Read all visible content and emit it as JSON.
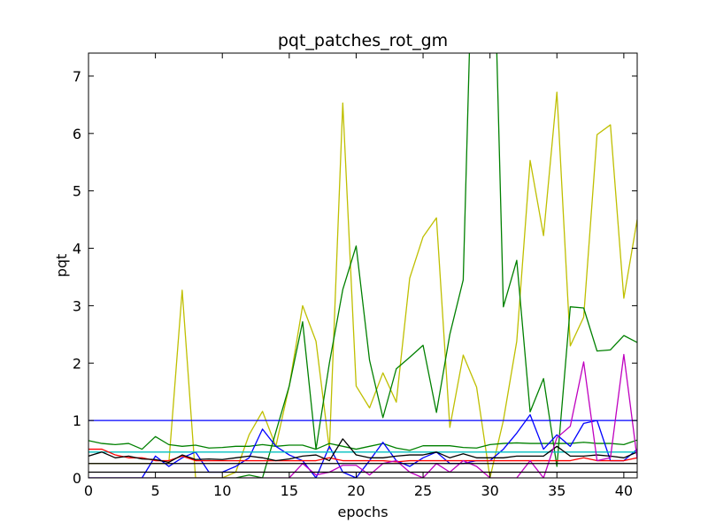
{
  "chart_data": {
    "type": "line",
    "title": "pqt_patches_rot_gm",
    "xlabel": "epochs",
    "ylabel": "pqt",
    "xlim": [
      0,
      41
    ],
    "ylim": [
      0,
      7.4
    ],
    "xticks": [
      0,
      5,
      10,
      15,
      20,
      25,
      30,
      35,
      40
    ],
    "yticks": [
      0,
      1,
      2,
      3,
      4,
      5,
      6,
      7
    ],
    "grid": false,
    "legend": "none",
    "x": [
      0,
      1,
      2,
      3,
      4,
      5,
      6,
      7,
      8,
      9,
      10,
      11,
      12,
      13,
      14,
      15,
      16,
      17,
      18,
      19,
      20,
      21,
      22,
      23,
      24,
      25,
      26,
      27,
      28,
      29,
      30,
      31,
      32,
      33,
      34,
      35,
      36,
      37,
      38,
      39,
      40,
      41
    ],
    "series": [
      {
        "color": "#bfbf00",
        "values": [
          0.25,
          0.25,
          0.25,
          0.25,
          0.25,
          0.25,
          0.25,
          3.27,
          0.0,
          0.0,
          0.0,
          0.1,
          0.75,
          1.16,
          0.55,
          1.6,
          3.0,
          2.38,
          0.5,
          6.53,
          1.6,
          1.22,
          1.83,
          1.32,
          3.48,
          4.2,
          4.53,
          0.88,
          2.14,
          1.58,
          0.0,
          1.0,
          2.38,
          5.53,
          4.22,
          6.72,
          2.3,
          2.8,
          5.98,
          6.15,
          3.13,
          4.5
        ]
      },
      {
        "color": "#008000",
        "values": [
          0.0,
          0.0,
          0.0,
          0.0,
          0.0,
          0.0,
          0.0,
          0.0,
          0.0,
          0.0,
          0.0,
          0.0,
          0.05,
          0.0,
          0.8,
          1.6,
          2.72,
          0.5,
          2.0,
          3.28,
          4.04,
          2.05,
          1.05,
          1.9,
          2.1,
          2.31,
          1.14,
          2.5,
          3.45,
          12.0,
          12.0,
          2.98,
          3.79,
          1.15,
          1.73,
          0.2,
          2.98,
          2.96,
          2.21,
          2.23,
          2.48,
          2.36
        ]
      },
      {
        "color": "#008000",
        "values": [
          0.65,
          0.6,
          0.58,
          0.6,
          0.5,
          0.72,
          0.58,
          0.55,
          0.57,
          0.52,
          0.53,
          0.55,
          0.55,
          0.58,
          0.55,
          0.57,
          0.57,
          0.5,
          0.6,
          0.55,
          0.5,
          0.55,
          0.6,
          0.52,
          0.48,
          0.56,
          0.56,
          0.56,
          0.53,
          0.52,
          0.58,
          0.6,
          0.61,
          0.6,
          0.6,
          0.6,
          0.6,
          0.62,
          0.6,
          0.6,
          0.58,
          0.66
        ]
      },
      {
        "color": "#0000ff",
        "values": [
          1.0,
          1.0,
          1.0,
          1.0,
          1.0,
          1.0,
          1.0,
          1.0,
          1.0,
          1.0,
          1.0,
          1.0,
          1.0,
          1.0,
          1.0,
          1.0,
          1.0,
          1.0,
          1.0,
          1.0,
          1.0,
          1.0,
          1.0,
          1.0,
          1.0,
          1.0,
          1.0,
          1.0,
          1.0,
          1.0,
          1.0,
          1.0,
          1.0,
          1.0,
          1.0,
          1.0,
          1.0,
          1.0,
          1.0,
          1.0,
          1.0,
          1.0
        ]
      },
      {
        "color": "#0000ff",
        "values": [
          0.0,
          0.0,
          0.0,
          0.0,
          0.0,
          0.38,
          0.2,
          0.35,
          0.45,
          0.1,
          0.1,
          0.2,
          0.35,
          0.85,
          0.55,
          0.4,
          0.3,
          0.0,
          0.55,
          0.1,
          0.0,
          0.3,
          0.62,
          0.3,
          0.2,
          0.35,
          0.45,
          0.25,
          0.25,
          0.3,
          0.3,
          0.5,
          0.78,
          1.1,
          0.5,
          0.75,
          0.55,
          0.95,
          1.0,
          0.3,
          0.3,
          0.5
        ]
      },
      {
        "color": "#00bfbf",
        "values": [
          0.45,
          0.45,
          0.45,
          0.45,
          0.45,
          0.45,
          0.45,
          0.45,
          0.45,
          0.45,
          0.45,
          0.45,
          0.45,
          0.45,
          0.45,
          0.45,
          0.45,
          0.45,
          0.45,
          0.45,
          0.45,
          0.45,
          0.45,
          0.45,
          0.45,
          0.45,
          0.45,
          0.45,
          0.45,
          0.45,
          0.45,
          0.45,
          0.45,
          0.45,
          0.45,
          0.45,
          0.45,
          0.45,
          0.45,
          0.45,
          0.45,
          0.45
        ]
      },
      {
        "color": "#ff0000",
        "values": [
          0.5,
          0.5,
          0.4,
          0.35,
          0.35,
          0.3,
          0.3,
          0.38,
          0.3,
          0.3,
          0.3,
          0.3,
          0.3,
          0.3,
          0.3,
          0.3,
          0.3,
          0.3,
          0.35,
          0.3,
          0.3,
          0.3,
          0.3,
          0.28,
          0.3,
          0.3,
          0.3,
          0.3,
          0.3,
          0.3,
          0.3,
          0.3,
          0.3,
          0.3,
          0.3,
          0.3,
          0.3,
          0.35,
          0.3,
          0.3,
          0.3,
          0.35
        ]
      },
      {
        "color": "#000000",
        "values": [
          0.38,
          0.45,
          0.35,
          0.38,
          0.33,
          0.32,
          0.27,
          0.4,
          0.32,
          0.33,
          0.32,
          0.35,
          0.38,
          0.35,
          0.3,
          0.33,
          0.38,
          0.4,
          0.3,
          0.68,
          0.4,
          0.35,
          0.35,
          0.38,
          0.4,
          0.4,
          0.45,
          0.35,
          0.42,
          0.35,
          0.35,
          0.35,
          0.38,
          0.38,
          0.38,
          0.55,
          0.38,
          0.38,
          0.4,
          0.38,
          0.35,
          0.45
        ]
      },
      {
        "color": "#bf00bf",
        "values": [
          0.0,
          0.0,
          0.0,
          0.0,
          0.0,
          0.0,
          0.0,
          0.0,
          0.0,
          0.0,
          0.0,
          0.0,
          0.0,
          0.0,
          0.0,
          0.0,
          0.25,
          0.05,
          0.1,
          0.22,
          0.22,
          0.05,
          0.25,
          0.3,
          0.1,
          0.0,
          0.25,
          0.1,
          0.3,
          0.2,
          0.0,
          0.0,
          0.0,
          0.3,
          0.0,
          0.7,
          0.9,
          2.02,
          0.3,
          0.35,
          2.15,
          0.33
        ]
      },
      {
        "color": "#000000",
        "values": [
          0.25,
          0.25,
          0.25,
          0.25,
          0.25,
          0.25,
          0.25,
          0.25,
          0.25,
          0.25,
          0.25,
          0.25,
          0.25,
          0.25,
          0.25,
          0.25,
          0.25,
          0.25,
          0.25,
          0.25,
          0.25,
          0.25,
          0.25,
          0.25,
          0.25,
          0.25,
          0.25,
          0.25,
          0.25,
          0.25,
          0.25,
          0.25,
          0.25,
          0.25,
          0.25,
          0.25,
          0.25,
          0.25,
          0.25,
          0.25,
          0.25,
          0.25
        ]
      },
      {
        "color": "#000000",
        "values": [
          0.1,
          0.1,
          0.1,
          0.1,
          0.1,
          0.1,
          0.1,
          0.1,
          0.1,
          0.1,
          0.1,
          0.1,
          0.1,
          0.1,
          0.1,
          0.1,
          0.1,
          0.1,
          0.1,
          0.1,
          0.1,
          0.1,
          0.1,
          0.1,
          0.1,
          0.1,
          0.1,
          0.1,
          0.1,
          0.1,
          0.1,
          0.1,
          0.1,
          0.1,
          0.1,
          0.1,
          0.1,
          0.1,
          0.1,
          0.1,
          0.1,
          0.1
        ]
      }
    ]
  }
}
